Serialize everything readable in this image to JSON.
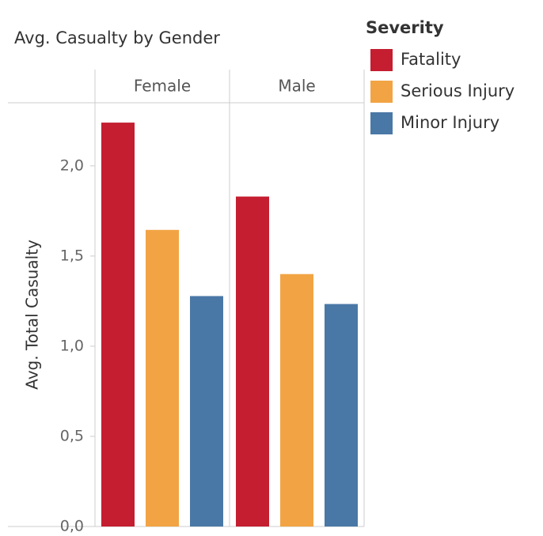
{
  "chart_data": {
    "type": "bar",
    "title": "Avg. Casualty by Gender",
    "y_label": "Avg. Total Casualty",
    "legend_title": "Severity",
    "categories": [
      "Female",
      "Male"
    ],
    "series": [
      {
        "name": "Fatality",
        "color": "#c41e30",
        "values": [
          2.24,
          1.83
        ]
      },
      {
        "name": "Serious Injury",
        "color": "#f2a444",
        "values": [
          1.645,
          1.4
        ]
      },
      {
        "name": "Minor Injury",
        "color": "#4a78a6",
        "values": [
          1.278,
          1.234
        ]
      }
    ],
    "ylim": [
      0,
      2.35
    ],
    "yticks": [
      {
        "value": 0,
        "label": "0,0"
      },
      {
        "value": 0.5,
        "label": "0,5"
      },
      {
        "value": 1,
        "label": "1,0"
      },
      {
        "value": 1.5,
        "label": "1,5"
      },
      {
        "value": 2,
        "label": "2,0"
      }
    ],
    "grid": false,
    "legend": "right"
  }
}
